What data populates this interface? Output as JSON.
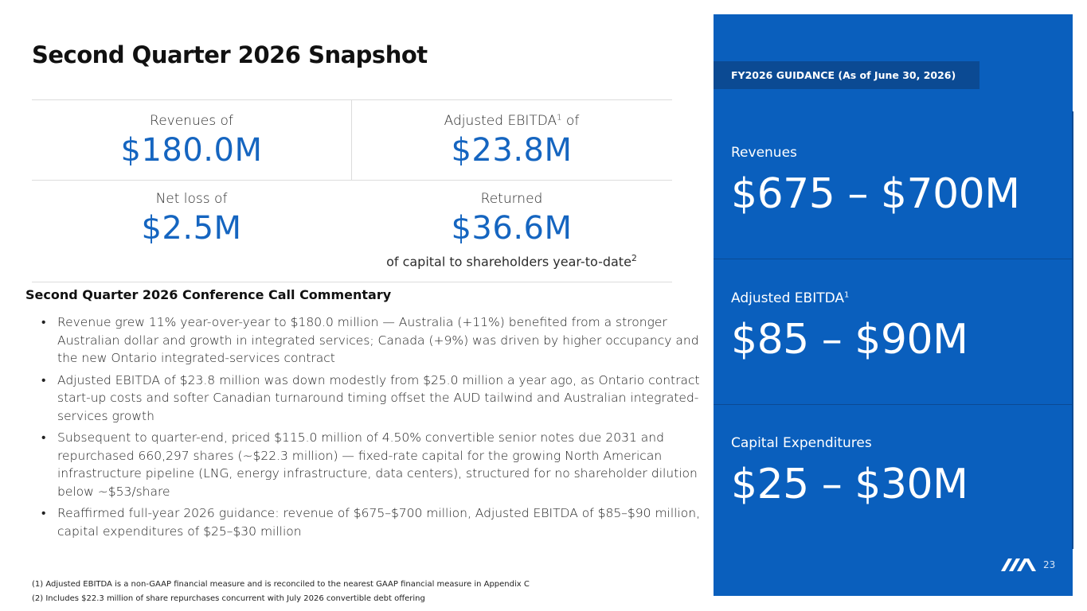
{
  "title": "Second Quarter 2026 Snapshot",
  "metrics": [
    {
      "label": "Revenues of",
      "value": "$180.0M"
    },
    {
      "label": "Adjusted EBITDA",
      "label_sup": "1",
      "label_suffix": " of",
      "value": "$23.8M"
    },
    {
      "label": "Net loss of",
      "value": "$2.5M"
    },
    {
      "label": "Returned",
      "value": "$36.6M",
      "note": "of capital to shareholders year-to-date",
      "note_sup": "2"
    }
  ],
  "commentary": {
    "heading": "Second Quarter 2026 Conference Call Commentary",
    "bullet_symbol": "•",
    "bullets": [
      "Revenue grew 11% year-over-year to $180.0 million — Australia (+11%) benefited from a stronger Australian dollar and growth in integrated services; Canada (+9%) was driven by higher occupancy and the new Ontario integrated-services contract",
      "Adjusted EBITDA of $23.8 million was down modestly from $25.0 million a year ago, as Ontario contract start-up costs and softer Canadian turnaround timing offset the AUD tailwind and Australian integrated-services growth",
      "Subsequent to quarter-end, priced $115.0 million of 4.50% convertible senior notes due 2031 and repurchased 660,297 shares (~$22.3 million) — fixed-rate capital for the growing North American infrastructure pipeline (LNG, energy infrastructure, data centers), structured for no shareholder dilution below ~$53/share",
      "Reaffirmed full-year 2026 guidance: revenue of $675–$700 million, Adjusted EBITDA of $85–$90 million, capital expenditures of $25–$30 million"
    ]
  },
  "footnotes": [
    "(1) Adjusted EBITDA is a non-GAAP financial measure and is reconciled to the nearest GAAP financial measure in Appendix C",
    "(2) Includes $22.3 million of share repurchases concurrent with July 2026 convertible debt offering"
  ],
  "guidance": {
    "tag": "FY2026 GUIDANCE (As of June 30, 2026)",
    "items": [
      {
        "label": "Revenues",
        "value": "$675 – $700M"
      },
      {
        "label": "Adjusted EBITDA",
        "label_sup": "1",
        "value": "$85 – $90M"
      },
      {
        "label": "Capital Expenditures",
        "value": "$25 – $30M"
      }
    ]
  },
  "page_number": "23",
  "colors": {
    "accent_blue": "#1565c0",
    "panel_blue": "#0a5fbd",
    "panel_dark_blue": "#0b4a93"
  },
  "icons": {
    "logo": "company-logo-icon"
  }
}
